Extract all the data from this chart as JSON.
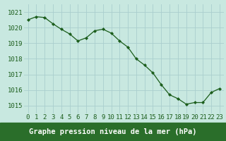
{
  "x": [
    0,
    1,
    2,
    3,
    4,
    5,
    6,
    7,
    8,
    9,
    10,
    11,
    12,
    13,
    14,
    15,
    16,
    17,
    18,
    19,
    20,
    21,
    22,
    23
  ],
  "y": [
    1020.5,
    1020.7,
    1020.65,
    1020.25,
    1019.9,
    1019.6,
    1019.15,
    1019.35,
    1019.8,
    1019.9,
    1019.65,
    1019.15,
    1018.75,
    1018.0,
    1017.6,
    1017.1,
    1016.35,
    1015.7,
    1015.45,
    1015.1,
    1015.2,
    1015.2,
    1015.85,
    1016.1
  ],
  "line_color": "#1a5c1a",
  "marker": "D",
  "marker_size": 2.2,
  "bg_color": "#c8e8e0",
  "grid_color": "#aacece",
  "xlabel": "Graphe pression niveau de la mer (hPa)",
  "xlabel_fontsize": 7.5,
  "xlabel_color": "#ffffff",
  "xlabel_bg": "#2a6e2a",
  "ylabel_ticks": [
    1015,
    1016,
    1017,
    1018,
    1019,
    1020,
    1021
  ],
  "ylim": [
    1014.5,
    1021.5
  ],
  "xlim": [
    -0.5,
    23.5
  ],
  "tick_fontsize": 6.5,
  "tick_color": "#1a5c1a",
  "line_width": 0.9
}
